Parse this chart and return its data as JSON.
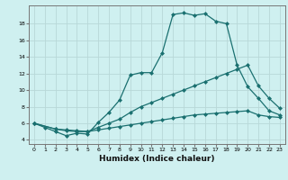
{
  "xlabel": "Humidex (Indice chaleur)",
  "background_color": "#cff0f0",
  "grid_color": "#b8d8d8",
  "line_color": "#1a7070",
  "line1_x": [
    0,
    1,
    2,
    3,
    4,
    5,
    6,
    7,
    8,
    9,
    10,
    11,
    12,
    13,
    14,
    15,
    16,
    17,
    18,
    19,
    20,
    21,
    22,
    23
  ],
  "line1_y": [
    6.0,
    5.5,
    5.0,
    4.5,
    4.8,
    4.7,
    6.1,
    7.3,
    8.8,
    11.8,
    12.1,
    12.1,
    14.5,
    19.1,
    19.3,
    19.0,
    19.2,
    18.3,
    18.0,
    13.0,
    10.4,
    9.0,
    7.5,
    7.0
  ],
  "line2_x": [
    0,
    2,
    3,
    4,
    5,
    6,
    7,
    8,
    9,
    10,
    11,
    12,
    13,
    14,
    15,
    16,
    17,
    18,
    19,
    20,
    21,
    22,
    23
  ],
  "line2_y": [
    6.0,
    5.3,
    5.1,
    5.0,
    5.0,
    5.5,
    6.0,
    6.5,
    7.3,
    8.0,
    8.5,
    9.0,
    9.5,
    10.0,
    10.5,
    11.0,
    11.5,
    12.0,
    12.5,
    13.0,
    10.5,
    9.0,
    7.8
  ],
  "line3_x": [
    0,
    2,
    3,
    4,
    5,
    6,
    7,
    8,
    9,
    10,
    11,
    12,
    13,
    14,
    15,
    16,
    17,
    18,
    19,
    20,
    21,
    22,
    23
  ],
  "line3_y": [
    6.0,
    5.3,
    5.2,
    5.1,
    5.0,
    5.2,
    5.4,
    5.6,
    5.8,
    6.0,
    6.2,
    6.4,
    6.6,
    6.8,
    7.0,
    7.1,
    7.2,
    7.3,
    7.4,
    7.5,
    7.0,
    6.8,
    6.7
  ],
  "xlim": [
    -0.5,
    23.5
  ],
  "ylim": [
    3.5,
    20.2
  ],
  "yticks": [
    4,
    6,
    8,
    10,
    12,
    14,
    16,
    18
  ],
  "xticks": [
    0,
    1,
    2,
    3,
    4,
    5,
    6,
    7,
    8,
    9,
    10,
    11,
    12,
    13,
    14,
    15,
    16,
    17,
    18,
    19,
    20,
    21,
    22,
    23
  ],
  "xtick_labels": [
    "0",
    "1",
    "2",
    "3",
    "4",
    "5",
    "6",
    "7",
    "8",
    "9",
    "10",
    "11",
    "12",
    "13",
    "14",
    "15",
    "16",
    "17",
    "18",
    "19",
    "20",
    "21",
    "22",
    "23"
  ],
  "marker": "D",
  "markersize": 2.0,
  "linewidth": 0.9
}
